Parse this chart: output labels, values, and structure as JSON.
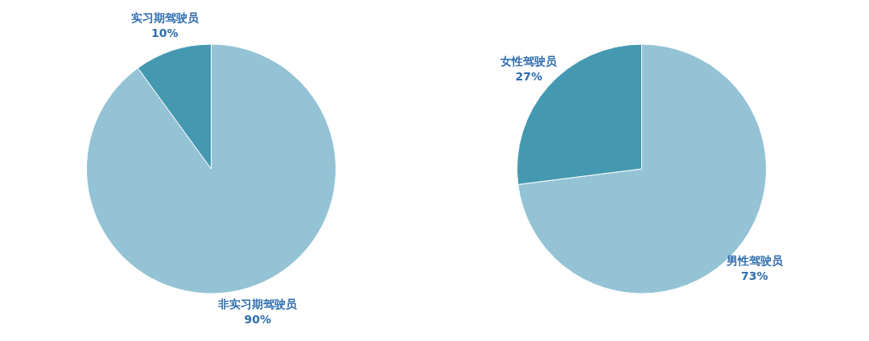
{
  "chart_data": [
    {
      "type": "pie",
      "categories": [
        "非实习期驾驶员",
        "实习期驾驶员"
      ],
      "values": [
        90,
        10
      ],
      "value_labels": [
        "90%",
        "10%"
      ],
      "colors": [
        "#93c3d5",
        "#4499b0"
      ]
    },
    {
      "type": "pie",
      "categories": [
        "男性驾驶员",
        "女性驾驶员"
      ],
      "values": [
        73,
        27
      ],
      "value_labels": [
        "73%",
        "27%"
      ],
      "colors": [
        "#93c3d5",
        "#4499b0"
      ]
    }
  ]
}
